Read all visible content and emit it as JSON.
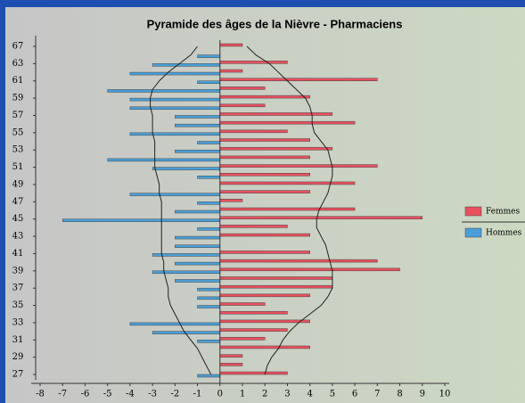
{
  "chart_data": {
    "type": "pyramid",
    "title": "Pyramide des âges de la Nièvre - Pharmaciens",
    "categories": [
      "67",
      null,
      "63",
      null,
      "61",
      null,
      "59",
      null,
      "57",
      null,
      "55",
      null,
      "53",
      null,
      "51",
      null,
      "49",
      null,
      "47",
      null,
      "45",
      null,
      "43",
      null,
      "41",
      null,
      "39",
      null,
      "37",
      null,
      "35",
      null,
      "33",
      null,
      "31",
      null,
      "29",
      null,
      "27"
    ],
    "series": [
      {
        "name": "Femmes",
        "color": "#e8505f",
        "values": [
          1,
          0,
          3,
          1,
          7,
          2,
          4,
          2,
          5,
          6,
          3,
          4,
          5,
          4,
          7,
          4,
          6,
          4,
          1,
          6,
          9,
          3,
          4,
          0,
          4,
          7,
          8,
          5,
          5,
          4,
          2,
          3,
          4,
          3,
          2,
          4,
          1,
          1,
          3
        ]
      },
      {
        "name": "Hommes",
        "color": "#4a9fd8",
        "values": [
          0,
          -1,
          -3,
          -4,
          -1,
          -5,
          -4,
          -4,
          -2,
          -2,
          -4,
          -1,
          -2,
          -5,
          -3,
          -1,
          0,
          -4,
          -1,
          -2,
          -7,
          -1,
          -2,
          -2,
          -3,
          -2,
          -3,
          -2,
          -1,
          -1,
          -1,
          0,
          -4,
          -3,
          -1,
          0,
          0,
          0,
          -1
        ]
      }
    ],
    "curves": [
      [
        -1.0,
        -1.3,
        -1.8,
        -2.3,
        -2.7,
        -3.0,
        -3.1,
        -3.1,
        -3.0,
        -3.0,
        -3.0,
        -2.9,
        -2.9,
        -2.9,
        -2.9,
        -2.8,
        -2.7,
        -2.7,
        -2.6,
        -2.6,
        -2.6,
        -2.6,
        -2.6,
        -2.6,
        -2.6,
        -2.5,
        -2.5,
        -2.4,
        -2.3,
        -2.3,
        -2.2,
        -2.0,
        -1.8,
        -1.6,
        -1.3,
        -1.0,
        -0.8,
        -0.6,
        -0.4
      ],
      [
        1.2,
        1.6,
        2.2,
        2.6,
        3.0,
        3.4,
        3.8,
        4.0,
        4.1,
        4.1,
        4.2,
        4.5,
        4.8,
        4.9,
        5.0,
        5.0,
        4.9,
        4.8,
        4.6,
        4.4,
        4.3,
        4.3,
        4.5,
        4.7,
        4.8,
        4.9,
        5.0,
        5.0,
        5.0,
        4.8,
        4.5,
        4.0,
        3.5,
        3.1,
        2.8,
        2.6,
        2.3,
        2.1,
        2.0
      ]
    ],
    "xlim": [
      -8,
      10
    ],
    "xticks": [
      -8,
      -7,
      -6,
      -5,
      -4,
      -3,
      -2,
      -1,
      0,
      1,
      2,
      3,
      4,
      5,
      6,
      7,
      8,
      9,
      10
    ],
    "legend": "right"
  }
}
